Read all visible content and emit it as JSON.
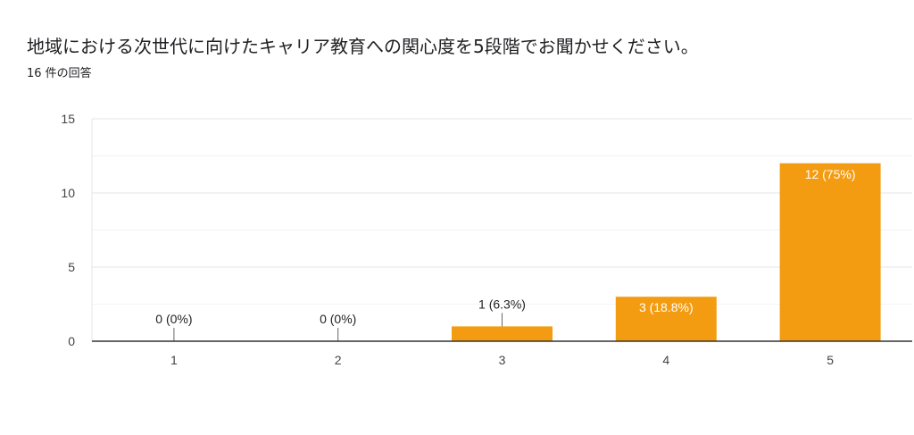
{
  "question": {
    "title": "地域における次世代に向けたキャリア教育への関心度を5段階でお聞かせください。",
    "response_count": "16 件の回答"
  },
  "colors": {
    "bar": "#f39c12",
    "axis": "#333333",
    "grid": "#e6e6e6"
  },
  "chart_data": {
    "type": "bar",
    "categories": [
      "1",
      "2",
      "3",
      "4",
      "5"
    ],
    "values": [
      0,
      0,
      1,
      3,
      12
    ],
    "data_labels": [
      "0 (0%)",
      "0 (0%)",
      "1 (6.3%)",
      "3 (18.8%)",
      "12 (75%)"
    ],
    "yticks": [
      0,
      5,
      10,
      15
    ],
    "ylim": [
      0,
      15
    ],
    "grid": true
  }
}
